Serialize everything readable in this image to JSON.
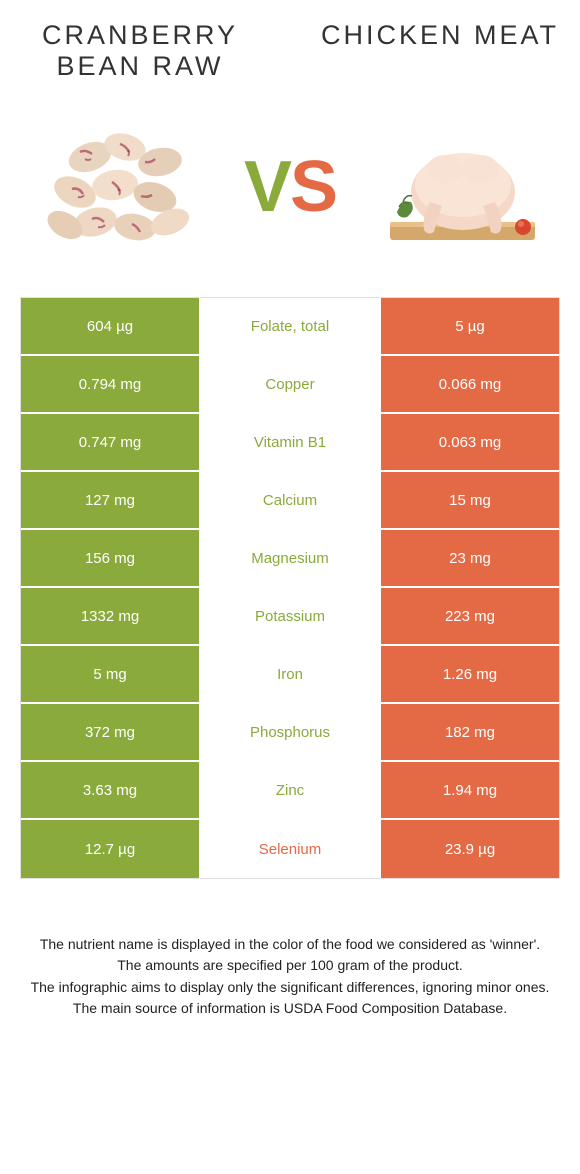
{
  "colors": {
    "food1": "#8aaa3b",
    "food2": "#e46a46",
    "mid_bg": "#ffffff"
  },
  "food1": {
    "title": "CRANBERRY BEAN RAW"
  },
  "food2": {
    "title": "CHICKEN MEAT"
  },
  "vs": {
    "v": "V",
    "s": "S"
  },
  "rows": [
    {
      "left": "604 µg",
      "name": "Folate, total",
      "right": "5 µg",
      "winner": "food1"
    },
    {
      "left": "0.794 mg",
      "name": "Copper",
      "right": "0.066 mg",
      "winner": "food1"
    },
    {
      "left": "0.747 mg",
      "name": "Vitamin B1",
      "right": "0.063 mg",
      "winner": "food1"
    },
    {
      "left": "127 mg",
      "name": "Calcium",
      "right": "15 mg",
      "winner": "food1"
    },
    {
      "left": "156 mg",
      "name": "Magnesium",
      "right": "23 mg",
      "winner": "food1"
    },
    {
      "left": "1332 mg",
      "name": "Potassium",
      "right": "223 mg",
      "winner": "food1"
    },
    {
      "left": "5 mg",
      "name": "Iron",
      "right": "1.26 mg",
      "winner": "food1"
    },
    {
      "left": "372 mg",
      "name": "Phosphorus",
      "right": "182 mg",
      "winner": "food1"
    },
    {
      "left": "3.63 mg",
      "name": "Zinc",
      "right": "1.94 mg",
      "winner": "food1"
    },
    {
      "left": "12.7 µg",
      "name": "Selenium",
      "right": "23.9 µg",
      "winner": "food2"
    }
  ],
  "footer": {
    "l1": "The nutrient name is displayed in the color of the food we considered as 'winner'.",
    "l2": "The amounts are specified per 100 gram of the product.",
    "l3": "The infographic aims to display only the significant differences, ignoring minor ones.",
    "l4": "The main source of information is USDA Food Composition Database."
  }
}
